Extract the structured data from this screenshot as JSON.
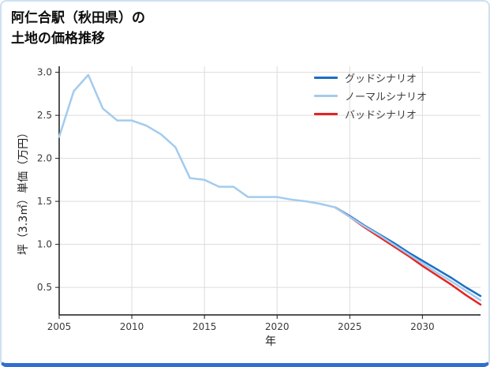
{
  "page": {
    "title_line1": "阿仁合駅（秋田県）の",
    "title_line2": "土地の価格推移"
  },
  "frame": {
    "border_color": "#cfe0f0",
    "bottom_bar_color": "#2e6fd1"
  },
  "chart_data": {
    "type": "line",
    "title": "阿仁合駅（秋田県）の土地の価格推移",
    "xlabel": "年",
    "ylabel": "坪（3.3㎡）単価（万円）",
    "xlim": [
      2005,
      2034
    ],
    "ylim": [
      0.18,
      3.07
    ],
    "x_ticks": [
      2005,
      2010,
      2015,
      2020,
      2025,
      2030
    ],
    "x_tick_labels": [
      "2005",
      "2010",
      "2015",
      "2020",
      "2025",
      "2030"
    ],
    "y_ticks": [
      0.5,
      1.0,
      1.5,
      2.0,
      2.5,
      3.0
    ],
    "y_tick_labels": [
      "0.5",
      "1.0",
      "1.5",
      "2.0",
      "2.5",
      "3.0"
    ],
    "grid": true,
    "grid_color": "#dcdcdc",
    "axis_color": "#1a1a1a",
    "legend_position": "upper right",
    "series": [
      {
        "name": "グッドシナリオ",
        "color": "#1b6fc4",
        "x": [
          2024,
          2025,
          2026,
          2027,
          2028,
          2029,
          2030,
          2031,
          2032,
          2033,
          2034
        ],
        "y": [
          1.43,
          1.33,
          1.22,
          1.12,
          1.02,
          0.91,
          0.81,
          0.71,
          0.61,
          0.5,
          0.4
        ]
      },
      {
        "name": "ノーマルシナリオ",
        "color": "#a3cbee",
        "x": [
          2005,
          2006,
          2007,
          2008,
          2009,
          2010,
          2011,
          2012,
          2013,
          2014,
          2015,
          2016,
          2017,
          2018,
          2019,
          2020,
          2021,
          2022,
          2023,
          2024,
          2025,
          2026,
          2027,
          2028,
          2029,
          2030,
          2031,
          2032,
          2033,
          2034
        ],
        "y": [
          2.25,
          2.78,
          2.97,
          2.58,
          2.44,
          2.44,
          2.38,
          2.28,
          2.13,
          1.77,
          1.75,
          1.67,
          1.67,
          1.55,
          1.55,
          1.55,
          1.52,
          1.5,
          1.47,
          1.43,
          1.32,
          1.21,
          1.11,
          1.0,
          0.89,
          0.78,
          0.67,
          0.57,
          0.46,
          0.35
        ]
      },
      {
        "name": "バッドシナリオ",
        "color": "#e52421",
        "x": [
          2024,
          2025,
          2026,
          2027,
          2028,
          2029,
          2030,
          2031,
          2032,
          2033,
          2034
        ],
        "y": [
          1.43,
          1.32,
          1.2,
          1.09,
          0.98,
          0.87,
          0.75,
          0.64,
          0.53,
          0.41,
          0.3
        ]
      }
    ]
  }
}
